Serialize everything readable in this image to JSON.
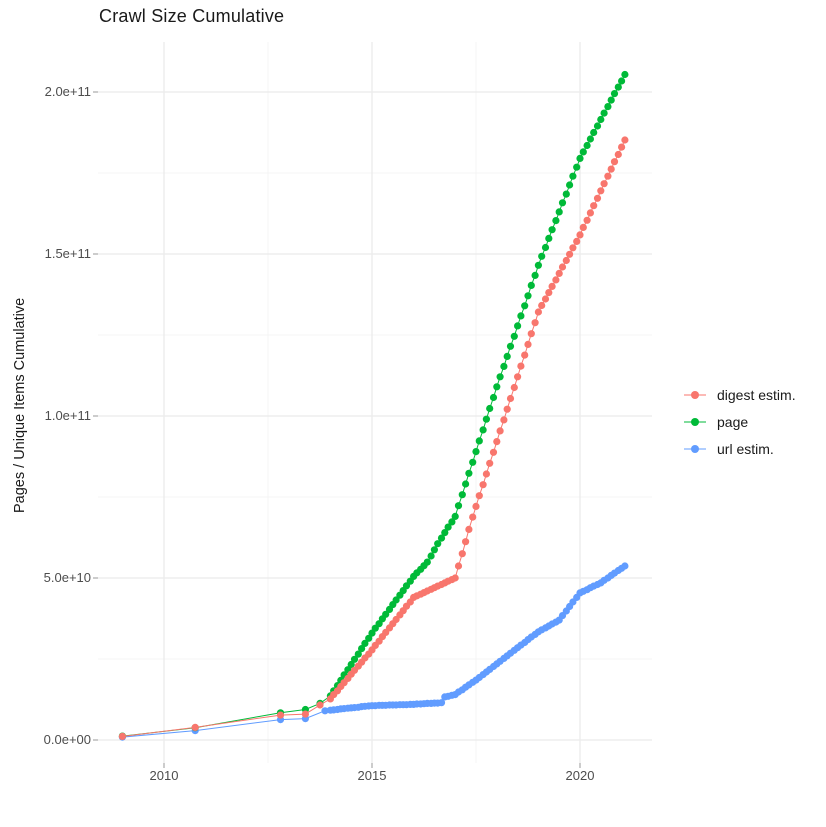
{
  "title": "Crawl Size Cumulative",
  "axes": {
    "y_label": "Pages / Unique Items Cumulative",
    "x_ticks": [
      "2010",
      "2015",
      "2020"
    ],
    "y_ticks": [
      "0.0e+00",
      "5.0e+10",
      "1.0e+11",
      "1.5e+11",
      "2.0e+11"
    ]
  },
  "chart_data": {
    "type": "scatter",
    "marker": "point-with-line",
    "title": "Crawl Size Cumulative",
    "xlabel": "",
    "ylabel": "Pages / Unique Items Cumulative",
    "legend_position": "right",
    "grid": true,
    "x_axis": {
      "ticks": [
        2010,
        2015,
        2020
      ],
      "minor_ticks": [
        2012.5,
        2017.5
      ],
      "range": [
        2008.4,
        2021.7
      ]
    },
    "y_axis": {
      "ticks": [
        0,
        50000000000.0,
        100000000000.0,
        150000000000.0,
        200000000000.0
      ],
      "minor_ticks": [
        25000000000.0,
        75000000000.0,
        125000000000.0,
        175000000000.0
      ],
      "range": [
        0,
        215000000000.0
      ]
    },
    "values_unit": "billions (x 1e9 pages / unique items)",
    "series": [
      {
        "name": "digest estim.",
        "color": "#F8766D",
        "points": [
          [
            2009,
            1.1
          ],
          [
            2010.75,
            3.9
          ],
          [
            2012.8,
            7.7
          ],
          [
            2013.4,
            8.0
          ],
          [
            2013.75,
            10.8
          ],
          [
            2014,
            12.7
          ],
          [
            2014.08,
            14.0
          ],
          [
            2014.17,
            15.2
          ],
          [
            2014.25,
            16.5
          ],
          [
            2014.33,
            17.7
          ],
          [
            2014.42,
            19.0
          ],
          [
            2014.5,
            20.3
          ],
          [
            2014.58,
            21.5
          ],
          [
            2014.67,
            22.8
          ],
          [
            2014.75,
            24.0
          ],
          [
            2014.83,
            25.3
          ],
          [
            2014.92,
            26.5
          ],
          [
            2015,
            27.8
          ],
          [
            2015.08,
            29.2
          ],
          [
            2015.17,
            30.5
          ],
          [
            2015.25,
            31.9
          ],
          [
            2015.33,
            33.2
          ],
          [
            2015.42,
            34.6
          ],
          [
            2015.5,
            35.9
          ],
          [
            2015.58,
            37.2
          ],
          [
            2015.67,
            38.6
          ],
          [
            2015.75,
            39.9
          ],
          [
            2015.83,
            41.3
          ],
          [
            2015.92,
            42.6
          ],
          [
            2016,
            44.0
          ],
          [
            2016.08,
            44.5
          ],
          [
            2016.17,
            45.0
          ],
          [
            2016.25,
            45.5
          ],
          [
            2016.33,
            46.0
          ],
          [
            2016.42,
            46.5
          ],
          [
            2016.5,
            47.0
          ],
          [
            2016.58,
            47.5
          ],
          [
            2016.67,
            48.0
          ],
          [
            2016.75,
            48.5
          ],
          [
            2016.83,
            49.0
          ],
          [
            2016.92,
            49.5
          ],
          [
            2017,
            50.0
          ],
          [
            2017.08,
            53.7
          ],
          [
            2017.17,
            57.5
          ],
          [
            2017.25,
            61.2
          ],
          [
            2017.33,
            65.0
          ],
          [
            2017.42,
            68.8
          ],
          [
            2017.5,
            72.1
          ],
          [
            2017.58,
            75.4
          ],
          [
            2017.67,
            78.8
          ],
          [
            2017.75,
            82.1
          ],
          [
            2017.83,
            85.4
          ],
          [
            2017.92,
            88.8
          ],
          [
            2018,
            92.1
          ],
          [
            2018.08,
            95.4
          ],
          [
            2018.17,
            98.8
          ],
          [
            2018.25,
            102.1
          ],
          [
            2018.33,
            105.4
          ],
          [
            2018.42,
            108.8
          ],
          [
            2018.5,
            112.1
          ],
          [
            2018.58,
            115.4
          ],
          [
            2018.67,
            118.8
          ],
          [
            2018.75,
            122.1
          ],
          [
            2018.83,
            125.4
          ],
          [
            2018.92,
            128.8
          ],
          [
            2019,
            132.1
          ],
          [
            2019.08,
            134.1
          ],
          [
            2019.17,
            136.1
          ],
          [
            2019.25,
            138.1
          ],
          [
            2019.33,
            140.0
          ],
          [
            2019.42,
            142.0
          ],
          [
            2019.5,
            144.0
          ],
          [
            2019.58,
            146.0
          ],
          [
            2019.67,
            148.0
          ],
          [
            2019.75,
            149.9
          ],
          [
            2019.83,
            151.9
          ],
          [
            2019.92,
            153.9
          ],
          [
            2020,
            155.9
          ],
          [
            2020.08,
            158.2
          ],
          [
            2020.17,
            160.4
          ],
          [
            2020.25,
            162.7
          ],
          [
            2020.33,
            164.9
          ],
          [
            2020.42,
            167.2
          ],
          [
            2020.5,
            169.5
          ],
          [
            2020.58,
            171.7
          ],
          [
            2020.67,
            174.0
          ],
          [
            2020.75,
            176.2
          ],
          [
            2020.83,
            178.5
          ],
          [
            2020.92,
            180.7
          ],
          [
            2021,
            183.0
          ],
          [
            2021.08,
            185.2
          ]
        ]
      },
      {
        "name": "page",
        "color": "#00BA38",
        "points": [
          [
            2009,
            1.2
          ],
          [
            2010.75,
            3.8
          ],
          [
            2012.8,
            8.4
          ],
          [
            2013.4,
            9.4
          ],
          [
            2013.75,
            11.3
          ],
          [
            2014,
            13.6
          ],
          [
            2014.08,
            15.2
          ],
          [
            2014.17,
            16.8
          ],
          [
            2014.25,
            18.4
          ],
          [
            2014.33,
            20.1
          ],
          [
            2014.42,
            21.7
          ],
          [
            2014.5,
            23.3
          ],
          [
            2014.58,
            24.9
          ],
          [
            2014.67,
            26.5
          ],
          [
            2014.75,
            28.2
          ],
          [
            2014.83,
            29.8
          ],
          [
            2014.92,
            31.4
          ],
          [
            2015,
            33.0
          ],
          [
            2015.08,
            34.5
          ],
          [
            2015.17,
            35.9
          ],
          [
            2015.25,
            37.4
          ],
          [
            2015.33,
            38.8
          ],
          [
            2015.42,
            40.3
          ],
          [
            2015.5,
            41.8
          ],
          [
            2015.58,
            43.2
          ],
          [
            2015.67,
            44.7
          ],
          [
            2015.75,
            46.1
          ],
          [
            2015.83,
            47.6
          ],
          [
            2015.92,
            49.0
          ],
          [
            2016,
            50.5
          ],
          [
            2016.08,
            51.6
          ],
          [
            2016.17,
            52.7
          ],
          [
            2016.25,
            53.8
          ],
          [
            2016.33,
            54.9
          ],
          [
            2016.42,
            56.8
          ],
          [
            2016.5,
            58.7
          ],
          [
            2016.58,
            60.6
          ],
          [
            2016.67,
            62.3
          ],
          [
            2016.75,
            64.0
          ],
          [
            2016.83,
            65.7
          ],
          [
            2016.92,
            67.3
          ],
          [
            2017,
            69.0
          ],
          [
            2017.08,
            72.3
          ],
          [
            2017.17,
            75.7
          ],
          [
            2017.25,
            79.0
          ],
          [
            2017.33,
            82.3
          ],
          [
            2017.42,
            85.7
          ],
          [
            2017.5,
            89.0
          ],
          [
            2017.58,
            92.3
          ],
          [
            2017.67,
            95.7
          ],
          [
            2017.75,
            99.0
          ],
          [
            2017.83,
            102.3
          ],
          [
            2017.92,
            105.7
          ],
          [
            2018,
            109.0
          ],
          [
            2018.08,
            112.1
          ],
          [
            2018.17,
            115.3
          ],
          [
            2018.25,
            118.4
          ],
          [
            2018.33,
            121.5
          ],
          [
            2018.42,
            124.6
          ],
          [
            2018.5,
            127.8
          ],
          [
            2018.58,
            130.9
          ],
          [
            2018.67,
            134.0
          ],
          [
            2018.75,
            137.1
          ],
          [
            2018.83,
            140.3
          ],
          [
            2018.92,
            143.4
          ],
          [
            2019,
            146.5
          ],
          [
            2019.08,
            149.3
          ],
          [
            2019.17,
            152.0
          ],
          [
            2019.25,
            154.8
          ],
          [
            2019.33,
            157.5
          ],
          [
            2019.42,
            160.3
          ],
          [
            2019.5,
            163.0
          ],
          [
            2019.58,
            165.8
          ],
          [
            2019.67,
            168.5
          ],
          [
            2019.75,
            171.3
          ],
          [
            2019.83,
            174.0
          ],
          [
            2019.92,
            176.8
          ],
          [
            2020,
            179.5
          ],
          [
            2020.08,
            181.5
          ],
          [
            2020.17,
            183.5
          ],
          [
            2020.25,
            185.5
          ],
          [
            2020.33,
            187.5
          ],
          [
            2020.42,
            189.5
          ],
          [
            2020.5,
            191.5
          ],
          [
            2020.58,
            193.5
          ],
          [
            2020.67,
            195.5
          ],
          [
            2020.75,
            197.5
          ],
          [
            2020.83,
            199.5
          ],
          [
            2020.92,
            201.5
          ],
          [
            2021,
            203.4
          ],
          [
            2021.08,
            205.4
          ]
        ]
      },
      {
        "name": "url estim.",
        "color": "#619CFF",
        "points": [
          [
            2009,
            0.9
          ],
          [
            2010.75,
            2.9
          ],
          [
            2012.8,
            6.3
          ],
          [
            2013.4,
            6.6
          ],
          [
            2013.87,
            9.0
          ],
          [
            2014,
            9.2
          ],
          [
            2014.08,
            9.3
          ],
          [
            2014.17,
            9.4
          ],
          [
            2014.25,
            9.6
          ],
          [
            2014.33,
            9.7
          ],
          [
            2014.42,
            9.8
          ],
          [
            2014.5,
            9.9
          ],
          [
            2014.58,
            10.0
          ],
          [
            2014.67,
            10.1
          ],
          [
            2014.75,
            10.3
          ],
          [
            2014.83,
            10.4
          ],
          [
            2014.92,
            10.5
          ],
          [
            2015,
            10.6
          ],
          [
            2015.08,
            10.6
          ],
          [
            2015.17,
            10.7
          ],
          [
            2015.25,
            10.7
          ],
          [
            2015.33,
            10.7
          ],
          [
            2015.42,
            10.8
          ],
          [
            2015.5,
            10.8
          ],
          [
            2015.58,
            10.8
          ],
          [
            2015.67,
            10.9
          ],
          [
            2015.75,
            10.9
          ],
          [
            2015.83,
            10.9
          ],
          [
            2015.92,
            11.0
          ],
          [
            2016,
            11.0
          ],
          [
            2016.08,
            11.1
          ],
          [
            2016.17,
            11.1
          ],
          [
            2016.25,
            11.2
          ],
          [
            2016.33,
            11.3
          ],
          [
            2016.42,
            11.3
          ],
          [
            2016.5,
            11.4
          ],
          [
            2016.58,
            11.4
          ],
          [
            2016.67,
            11.5
          ],
          [
            2016.75,
            13.3
          ],
          [
            2016.83,
            13.5
          ],
          [
            2016.92,
            13.8
          ],
          [
            2017,
            14.0
          ],
          [
            2017.08,
            14.8
          ],
          [
            2017.17,
            15.5
          ],
          [
            2017.25,
            16.3
          ],
          [
            2017.33,
            17.0
          ],
          [
            2017.42,
            17.8
          ],
          [
            2017.5,
            18.5
          ],
          [
            2017.58,
            19.3
          ],
          [
            2017.67,
            20.2
          ],
          [
            2017.75,
            21.0
          ],
          [
            2017.83,
            21.8
          ],
          [
            2017.92,
            22.7
          ],
          [
            2018,
            23.5
          ],
          [
            2018.08,
            24.3
          ],
          [
            2018.17,
            25.2
          ],
          [
            2018.25,
            26.0
          ],
          [
            2018.33,
            26.8
          ],
          [
            2018.42,
            27.7
          ],
          [
            2018.5,
            28.5
          ],
          [
            2018.58,
            29.3
          ],
          [
            2018.67,
            30.1
          ],
          [
            2018.75,
            31.0
          ],
          [
            2018.83,
            31.8
          ],
          [
            2018.92,
            32.6
          ],
          [
            2019,
            33.4
          ],
          [
            2019.08,
            34.0
          ],
          [
            2019.17,
            34.6
          ],
          [
            2019.25,
            35.2
          ],
          [
            2019.33,
            35.8
          ],
          [
            2019.42,
            36.4
          ],
          [
            2019.5,
            37.0
          ],
          [
            2019.58,
            38.4
          ],
          [
            2019.67,
            39.8
          ],
          [
            2019.75,
            41.2
          ],
          [
            2019.83,
            42.6
          ],
          [
            2019.92,
            44.0
          ],
          [
            2020,
            45.4
          ],
          [
            2020.08,
            45.9
          ],
          [
            2020.17,
            46.4
          ],
          [
            2020.25,
            47.0
          ],
          [
            2020.33,
            47.5
          ],
          [
            2020.42,
            48.0
          ],
          [
            2020.5,
            48.5
          ],
          [
            2020.58,
            49.3
          ],
          [
            2020.67,
            50.0
          ],
          [
            2020.75,
            50.8
          ],
          [
            2020.83,
            51.5
          ],
          [
            2020.92,
            52.3
          ],
          [
            2021,
            53.0
          ],
          [
            2021.08,
            53.7
          ]
        ]
      }
    ],
    "colors": {
      "grid_major": "#ebebeb",
      "grid_minor": "#f4f4f4",
      "tick": "#999999",
      "tick_label": "#4d4d4d",
      "text": "#1a1a1a"
    }
  }
}
